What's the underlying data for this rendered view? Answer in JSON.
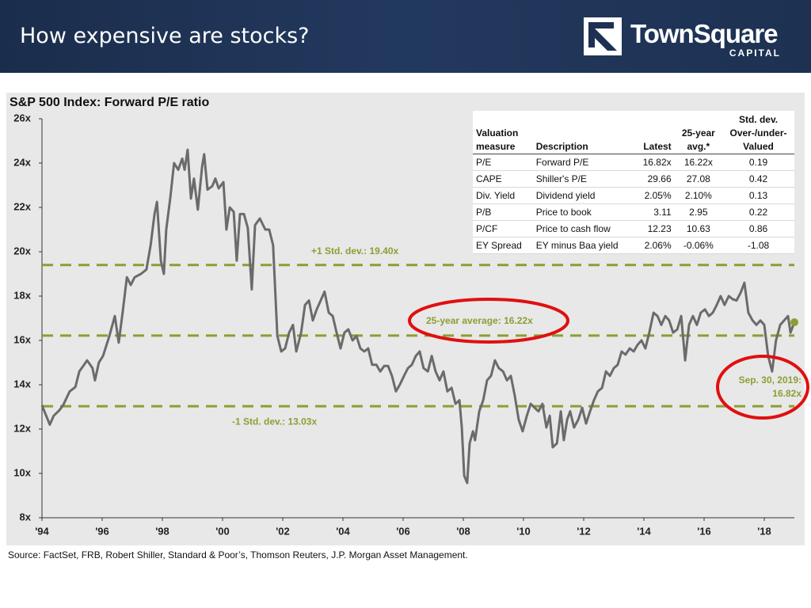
{
  "slide_title": "How expensive are stocks?",
  "logo": {
    "name": "TownSquare",
    "tagline": "CAPITAL"
  },
  "chart_data": {
    "type": "line",
    "title": "S&P 500 Index: Forward P/E ratio",
    "x": [
      1994.0,
      1994.26,
      1994.39,
      1994.58,
      1994.71,
      1994.92,
      1995.11,
      1995.24,
      1995.37,
      1995.5,
      1995.68,
      1995.76,
      1995.89,
      1996.03,
      1996.24,
      1996.42,
      1996.55,
      1996.68,
      1996.82,
      1996.95,
      1997.08,
      1997.29,
      1997.47,
      1997.61,
      1997.74,
      1997.82,
      1997.95,
      1998.05,
      1998.13,
      1998.26,
      1998.39,
      1998.53,
      1998.66,
      1998.74,
      1998.84,
      1998.95,
      1999.05,
      1999.18,
      1999.32,
      1999.39,
      1999.5,
      1999.66,
      1999.76,
      1999.87,
      2000.03,
      2000.13,
      2000.24,
      2000.37,
      2000.47,
      2000.58,
      2000.71,
      2000.84,
      2000.97,
      2001.08,
      2001.24,
      2001.42,
      2001.55,
      2001.68,
      2001.82,
      2001.95,
      2002.08,
      2002.21,
      2002.34,
      2002.45,
      2002.61,
      2002.74,
      2002.87,
      2003.0,
      2003.13,
      2003.26,
      2003.39,
      2003.53,
      2003.66,
      2003.79,
      2003.92,
      2004.05,
      2004.18,
      2004.32,
      2004.45,
      2004.58,
      2004.71,
      2004.84,
      2004.97,
      2005.11,
      2005.24,
      2005.37,
      2005.5,
      2005.63,
      2005.76,
      2005.89,
      2006.03,
      2006.16,
      2006.29,
      2006.42,
      2006.55,
      2006.68,
      2006.82,
      2006.95,
      2007.08,
      2007.21,
      2007.34,
      2007.47,
      2007.61,
      2007.74,
      2007.87,
      2007.95,
      2008.03,
      2008.13,
      2008.21,
      2008.32,
      2008.39,
      2008.53,
      2008.66,
      2008.79,
      2008.92,
      2009.05,
      2009.18,
      2009.32,
      2009.45,
      2009.58,
      2009.71,
      2009.84,
      2009.97,
      2010.11,
      2010.24,
      2010.37,
      2010.5,
      2010.63,
      2010.76,
      2010.87,
      2010.97,
      2011.11,
      2011.24,
      2011.34,
      2011.45,
      2011.55,
      2011.68,
      2011.82,
      2011.95,
      2012.08,
      2012.21,
      2012.34,
      2012.47,
      2012.61,
      2012.74,
      2012.87,
      2013.0,
      2013.13,
      2013.26,
      2013.39,
      2013.53,
      2013.66,
      2013.79,
      2013.92,
      2014.05,
      2014.18,
      2014.32,
      2014.45,
      2014.58,
      2014.71,
      2014.84,
      2014.97,
      2015.11,
      2015.24,
      2015.37,
      2015.5,
      2015.63,
      2015.76,
      2015.89,
      2016.03,
      2016.16,
      2016.29,
      2016.42,
      2016.55,
      2016.68,
      2016.82,
      2016.95,
      2017.08,
      2017.21,
      2017.34,
      2017.47,
      2017.61,
      2017.74,
      2017.87,
      2018.0,
      2018.13,
      2018.26,
      2018.39,
      2018.53,
      2018.66,
      2018.79,
      2018.87,
      2019.0
    ],
    "series": [
      {
        "color": "#6b6b6b",
        "values": [
          13.07,
          12.2,
          12.6,
          12.85,
          13.1,
          13.7,
          13.9,
          14.6,
          14.85,
          15.1,
          14.75,
          14.2,
          15.0,
          15.3,
          16.2,
          17.1,
          15.9,
          17.25,
          18.85,
          18.5,
          18.85,
          19.0,
          19.2,
          20.3,
          21.7,
          22.25,
          19.6,
          19.0,
          21.0,
          22.4,
          24.0,
          23.7,
          24.2,
          23.7,
          24.6,
          22.4,
          23.3,
          21.9,
          23.85,
          24.4,
          22.8,
          22.96,
          23.3,
          22.86,
          23.14,
          21.0,
          22.0,
          21.8,
          19.6,
          21.7,
          21.7,
          21.07,
          18.3,
          21.2,
          21.5,
          21.0,
          21.0,
          20.3,
          16.2,
          15.5,
          15.64,
          16.35,
          16.7,
          15.5,
          16.35,
          17.6,
          17.8,
          16.9,
          17.4,
          17.8,
          18.2,
          17.25,
          17.1,
          16.35,
          15.64,
          16.35,
          16.5,
          16.0,
          16.2,
          15.64,
          15.5,
          15.64,
          14.9,
          14.9,
          14.6,
          14.85,
          14.85,
          14.4,
          13.7,
          14.0,
          14.4,
          14.75,
          14.9,
          15.3,
          15.5,
          14.75,
          14.6,
          15.3,
          14.6,
          14.2,
          14.6,
          13.7,
          13.86,
          13.14,
          13.3,
          12.07,
          9.9,
          9.57,
          11.36,
          11.9,
          11.5,
          12.8,
          13.3,
          14.2,
          14.4,
          15.1,
          14.75,
          14.6,
          14.2,
          14.4,
          13.5,
          12.43,
          11.9,
          12.6,
          13.14,
          12.96,
          12.8,
          13.14,
          12.07,
          12.6,
          11.18,
          11.36,
          12.8,
          11.5,
          12.43,
          12.8,
          12.07,
          12.43,
          12.96,
          12.25,
          12.8,
          13.3,
          13.7,
          13.86,
          14.6,
          14.4,
          14.75,
          14.9,
          15.5,
          15.36,
          15.64,
          15.5,
          15.8,
          16.0,
          15.64,
          16.35,
          17.25,
          17.1,
          16.7,
          17.1,
          16.9,
          16.35,
          16.5,
          17.1,
          15.1,
          16.7,
          17.1,
          16.7,
          17.25,
          17.4,
          17.1,
          17.25,
          17.6,
          18.0,
          17.6,
          18.0,
          17.86,
          17.8,
          18.14,
          18.6,
          17.25,
          16.9,
          16.7,
          16.9,
          16.7,
          15.3,
          14.6,
          16.0,
          16.7,
          16.9,
          17.1,
          16.35,
          16.82
        ]
      }
    ],
    "xlim": [
      1994,
      2019
    ],
    "xticks": [
      {
        "value": 1994,
        "label": "'94"
      },
      {
        "value": 1996,
        "label": "'96"
      },
      {
        "value": 1998,
        "label": "'98"
      },
      {
        "value": 2000,
        "label": "'00"
      },
      {
        "value": 2002,
        "label": "'02"
      },
      {
        "value": 2004,
        "label": "'04"
      },
      {
        "value": 2006,
        "label": "'06"
      },
      {
        "value": 2008,
        "label": "'08"
      },
      {
        "value": 2010,
        "label": "'10"
      },
      {
        "value": 2012,
        "label": "'12"
      },
      {
        "value": 2014,
        "label": "'14"
      },
      {
        "value": 2016,
        "label": "'16"
      },
      {
        "value": 2018,
        "label": "'18"
      }
    ],
    "ylim": [
      8,
      26
    ],
    "yticks": [
      {
        "value": 8,
        "label": "8x"
      },
      {
        "value": 10,
        "label": "10x"
      },
      {
        "value": 12,
        "label": "12x"
      },
      {
        "value": 14,
        "label": "14x"
      },
      {
        "value": 16,
        "label": "16x"
      },
      {
        "value": 18,
        "label": "18x"
      },
      {
        "value": 20,
        "label": "20x"
      },
      {
        "value": 22,
        "label": "22x"
      },
      {
        "value": 24,
        "label": "24x"
      },
      {
        "value": 26,
        "label": "26x"
      }
    ],
    "grid": false,
    "ref_lines": [
      {
        "value": 19.4,
        "label": "+1 Std. dev.: 19.40x"
      },
      {
        "value": 16.22,
        "label": "25-year average: 16.22x"
      },
      {
        "value": 13.03,
        "label": "-1 Std. dev.: 13.03x"
      }
    ],
    "ref_color": "#8c9e33",
    "last_point_label": [
      "Sep. 30, 2019:",
      "16.82x"
    ],
    "highlight_color": "#e01010"
  },
  "table": {
    "header": [
      [
        "Valuation",
        "measure"
      ],
      [
        "Description"
      ],
      [
        "Latest"
      ],
      [
        "25-year",
        "avg.*"
      ],
      [
        "Std. dev.",
        "Over-/under-",
        "Valued"
      ]
    ],
    "rows": [
      [
        "P/E",
        "Forward P/E",
        "16.82x",
        "16.22x",
        "0.19"
      ],
      [
        "CAPE",
        "Shiller's P/E",
        "29.66",
        "27.08",
        "0.42"
      ],
      [
        "Div. Yield",
        "Dividend yield",
        "2.05%",
        "2.10%",
        "0.13"
      ],
      [
        "P/B",
        "Price to book",
        "3.11",
        "2.95",
        "0.22"
      ],
      [
        "P/CF",
        "Price to cash flow",
        "12.23",
        "10.63",
        "0.86"
      ],
      [
        "EY Spread",
        "EY minus Baa yield",
        "2.06%",
        "-0.06%",
        "-1.08"
      ]
    ]
  },
  "source": "Source: FactSet, FRB, Robert Shiller, Standard & Poor’s, Thomson Reuters, J.P. Morgan Asset Management."
}
